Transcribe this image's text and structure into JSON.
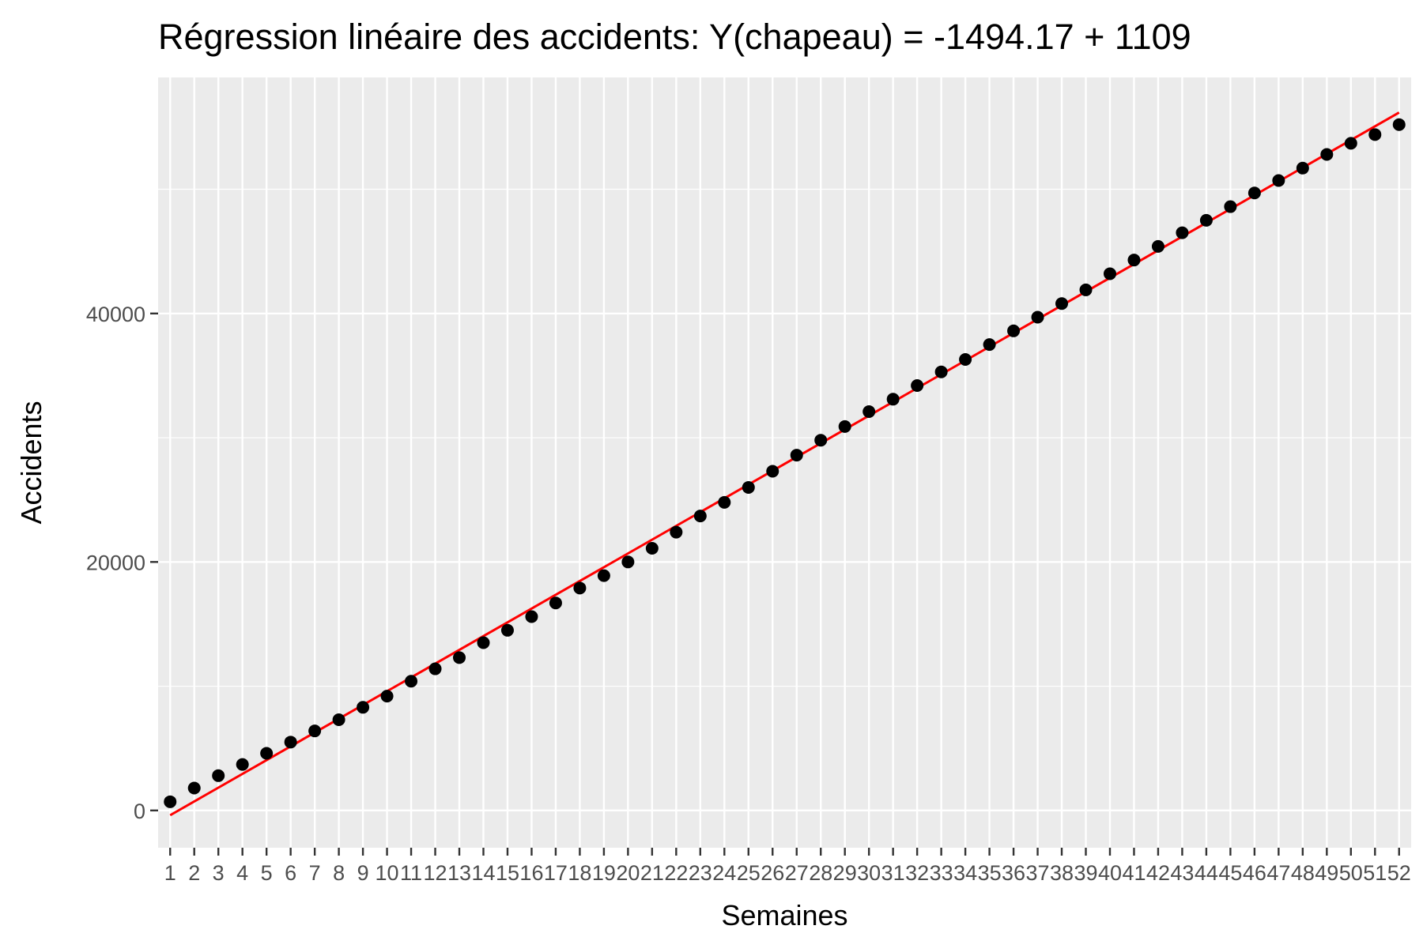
{
  "chart_data": {
    "type": "scatter",
    "title": "Régression linéaire des accidents: Y(chapeau) = -1494.17 + 1109",
    "xlabel": "Semaines",
    "ylabel": "Accidents",
    "x": [
      1,
      2,
      3,
      4,
      5,
      6,
      7,
      8,
      9,
      10,
      11,
      12,
      13,
      14,
      15,
      16,
      17,
      18,
      19,
      20,
      21,
      22,
      23,
      24,
      25,
      26,
      27,
      28,
      29,
      30,
      31,
      32,
      33,
      34,
      35,
      36,
      37,
      38,
      39,
      40,
      41,
      42,
      43,
      44,
      45,
      46,
      47,
      48,
      49,
      50,
      51,
      52
    ],
    "x_tick_labels": [
      "1",
      "2",
      "3",
      "4",
      "5",
      "6",
      "7",
      "8",
      "9",
      "10",
      "11",
      "12",
      "13",
      "14",
      "15",
      "16",
      "17",
      "18",
      "19",
      "20",
      "21",
      "22",
      "23",
      "24",
      "25",
      "26",
      "27",
      "28",
      "29",
      "30",
      "31",
      "32",
      "33",
      "34",
      "35",
      "36",
      "37",
      "38",
      "39",
      "40",
      "41",
      "42",
      "43",
      "44",
      "45",
      "46",
      "47",
      "48",
      "49",
      "50",
      "51",
      "52"
    ],
    "y_tick_values": [
      0,
      20000,
      40000
    ],
    "y_tick_labels": [
      "0",
      "20000",
      "40000"
    ],
    "xlim": [
      0.5,
      52.5
    ],
    "ylim": [
      -3000,
      59000
    ],
    "grid": true,
    "series": [
      {
        "type": "points",
        "color": "#000000",
        "values": [
          700,
          1800,
          2800,
          3700,
          4600,
          5500,
          6400,
          7300,
          8300,
          9200,
          10400,
          11400,
          12300,
          13500,
          14500,
          15600,
          16700,
          17900,
          18900,
          20000,
          21100,
          22400,
          23700,
          24800,
          26000,
          27300,
          28600,
          29800,
          30900,
          32100,
          33100,
          34200,
          35300,
          36300,
          37500,
          38600,
          39700,
          40800,
          41900,
          43200,
          44300,
          45400,
          46500,
          47500,
          48600,
          49700,
          50700,
          51700,
          52800,
          53700,
          54400,
          55200
        ]
      },
      {
        "type": "fitted_line",
        "color": "#ff0000",
        "intercept": -1494.17,
        "slope": 1109
      }
    ],
    "panel_background": "#ebebeb",
    "grid_color": "#ffffff"
  }
}
